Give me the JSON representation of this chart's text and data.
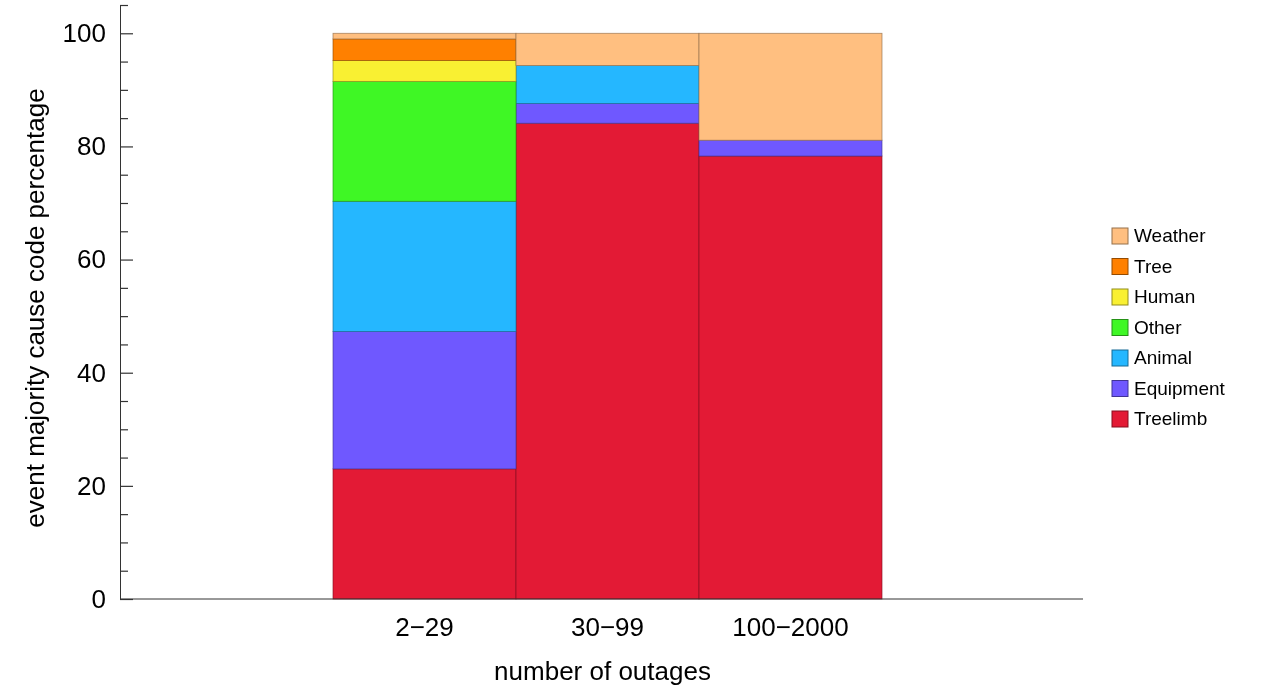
{
  "chart_data": {
    "type": "bar",
    "stacked": true,
    "xlabel": "number of outages",
    "ylabel": "event majority cause code percentage",
    "categories": [
      "2−29",
      "30−99",
      "100−2000"
    ],
    "series": [
      {
        "name": "Treelimb",
        "color": "#e31a35",
        "values": [
          23,
          84.1,
          78.3
        ]
      },
      {
        "name": "Equipment",
        "color": "#6f58ff",
        "values": [
          24.3,
          3.5,
          2.8
        ]
      },
      {
        "name": "Animal",
        "color": "#25b7ff",
        "values": [
          23,
          6.7,
          null
        ]
      },
      {
        "name": "Other",
        "color": "#3ff725",
        "values": [
          21.2,
          null,
          null
        ]
      },
      {
        "name": "Human",
        "color": "#f9f032",
        "values": [
          3.7,
          null,
          null
        ]
      },
      {
        "name": "Tree",
        "color": "#ff8000",
        "values": [
          3.8,
          null,
          null
        ]
      },
      {
        "name": "Weather",
        "color": "#ffbf80",
        "values": [
          1,
          5.7,
          18.9
        ]
      }
    ],
    "ylim": [
      0,
      105
    ],
    "yticks": [
      0,
      {
        "value": 5,
        "label": null
      },
      {
        "value": 10,
        "label": null
      },
      {
        "value": 15,
        "label": null
      },
      20,
      {
        "value": 25,
        "label": null
      },
      {
        "value": 30,
        "label": null
      },
      {
        "value": 35,
        "label": null
      },
      40,
      {
        "value": 45,
        "label": null
      },
      {
        "value": 50,
        "label": null
      },
      {
        "value": 55,
        "label": null
      },
      60,
      {
        "value": 65,
        "label": null
      },
      {
        "value": 70,
        "label": null
      },
      {
        "value": 75,
        "label": null
      },
      80,
      {
        "value": 85,
        "label": null
      },
      {
        "value": 90,
        "label": null
      },
      {
        "value": 95,
        "label": null
      },
      100,
      {
        "value": 105,
        "label": null
      }
    ],
    "grid": false,
    "legend": "right"
  }
}
